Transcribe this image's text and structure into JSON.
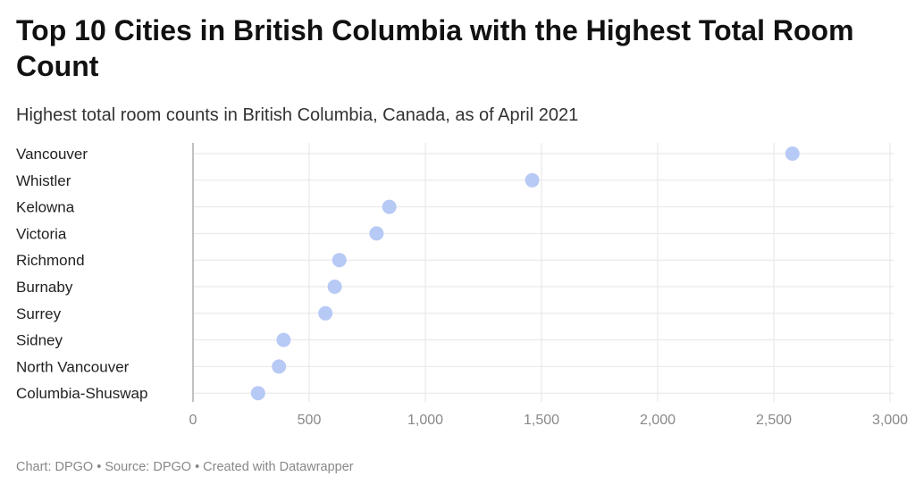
{
  "header": {
    "title": "Top 10 Cities in British Columbia with the Highest Total Room Count",
    "subtitle": "Highest total room counts in British Columbia, Canada, as of April 2021"
  },
  "footer": {
    "text": "Chart: DPGO • Source: DPGO • Created with Datawrapper"
  },
  "chart_data": {
    "type": "scatter",
    "title": "Top 10 Cities in British Columbia with the Highest Total Room Count",
    "subtitle": "Highest total room counts in British Columbia, Canada, as of April 2021",
    "categories": [
      "Vancouver",
      "Whistler",
      "Kelowna",
      "Victoria",
      "Richmond",
      "Burnaby",
      "Surrey",
      "Sidney",
      "North Vancouver",
      "Columbia-Shuswap"
    ],
    "values": [
      2580,
      1460,
      845,
      790,
      630,
      610,
      570,
      390,
      370,
      280
    ],
    "xlim": [
      0,
      3000
    ],
    "xticks": [
      0,
      500,
      1000,
      1500,
      2000,
      2500,
      3000
    ],
    "xtick_labels": [
      "0",
      "500",
      "1,000",
      "1,500",
      "2,000",
      "2,500",
      "3,000"
    ],
    "xlabel": "",
    "ylabel": "",
    "grid": true,
    "dot_color": "#b7c9f5",
    "grid_color": "#e6e6e6",
    "zero_line_color": "#9a9a9a"
  }
}
